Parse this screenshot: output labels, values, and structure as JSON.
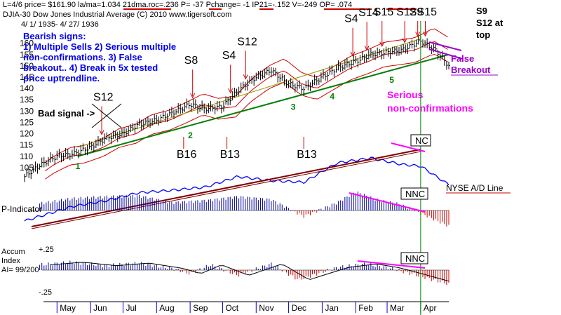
{
  "header": {
    "line1": "L=4/6  price= $161.90  la/ma=1.034  21dma.roc=.236  P= -37  Pchange= -1  IP21=-.152  V=-249  OP= .074",
    "line2": "DJIA-30  Dow Jones Industrial Average     (C) 2010  www.tigersoft.com",
    "line3": "4/ 1/ 1935-  4/ 27/ 1936"
  },
  "top_right_note": [
    "S9",
    "S12 at",
    "top"
  ],
  "bearish_box": {
    "title": "Bearish signs:",
    "lines": [
      "1) Multiple Sells 2) Serious multiple",
      "non-confirmations. 3) False",
      "breakout.. 4) Break in 5x tested",
      "price uptrendline."
    ]
  },
  "panel_labels": {
    "p_indicator": "P-Indicator",
    "accum_index": [
      "Accum",
      "Index",
      "AI= 99/200"
    ],
    "accum_plus": "+.25",
    "accum_minus": "-.25"
  },
  "annotations": {
    "bad_signal": "Bad signal ->",
    "false_breakout": [
      "False",
      "Breakout"
    ],
    "serious": [
      "Serious",
      "non-confirmations"
    ],
    "nyse_ad": "NYSE A/D Line",
    "nc": "NC",
    "nnc1": "NNC",
    "nnc2": "NNC"
  },
  "signals": [
    {
      "label": "S12",
      "date": "1935-06-10",
      "row": "upper"
    },
    {
      "label": "S8",
      "date": "1935-09-02",
      "row": "upper"
    },
    {
      "label": "S4",
      "date": "1935-10-07",
      "row": "upper"
    },
    {
      "label": "S12",
      "date": "1935-10-21",
      "row": "upper"
    },
    {
      "label": "S4",
      "date": "1936-01-28",
      "row": "upper"
    },
    {
      "label": "S14",
      "date": "1936-02-10",
      "row": "upper"
    },
    {
      "label": "S15",
      "date": "1936-02-24",
      "row": "upper"
    },
    {
      "label": "S12",
      "date": "1936-03-16",
      "row": "upper"
    },
    {
      "label": "S9",
      "date": "1936-03-28",
      "row": "upper"
    },
    {
      "label": "S15",
      "date": "1936-04-04",
      "row": "upper"
    },
    {
      "label": "B16",
      "date": "1935-08-26",
      "row": "lower"
    },
    {
      "label": "B13",
      "date": "1935-10-05",
      "row": "lower"
    },
    {
      "label": "B13",
      "date": "1935-12-15",
      "row": "lower"
    }
  ],
  "trendline_touches": [
    "1",
    "2",
    "3",
    "4",
    "5"
  ],
  "colors": {
    "price_bars": "#000000",
    "ma_band": "#cc0000",
    "upper_band": "#999900",
    "uptrendline": "#008000",
    "ad_line": "#0000ff",
    "ad_trendline": "#800000",
    "positive_hist": "#000099",
    "negative_hist": "#cc0000",
    "magenta": "#ff00ff",
    "purple": "#9900cc",
    "header_underline": "#cc0000"
  },
  "chart_data": {
    "type": "bar",
    "title": "Dow Jones Industrial Average",
    "x_range": [
      "1935-04-01",
      "1936-04-27"
    ],
    "x_tick_labels": [
      "May",
      "Jun",
      "Jul",
      "Aug",
      "Sep",
      "Oct",
      "Nov",
      "Dec",
      "Jan",
      "Feb",
      "Mar",
      "Apr"
    ],
    "y_ticks": [
      105,
      110,
      115,
      120,
      125,
      130,
      135,
      140,
      145,
      150,
      155,
      160
    ],
    "ylim": [
      100,
      163
    ],
    "price_series": {
      "name": "DJIA",
      "points": [
        [
          "1935-04-01",
          101
        ],
        [
          "1935-04-15",
          106
        ],
        [
          "1935-05-01",
          110
        ],
        [
          "1935-05-15",
          111
        ],
        [
          "1935-06-01",
          114
        ],
        [
          "1935-06-15",
          118
        ],
        [
          "1935-07-01",
          120
        ],
        [
          "1935-07-15",
          124
        ],
        [
          "1935-08-01",
          126
        ],
        [
          "1935-08-15",
          129
        ],
        [
          "1935-09-01",
          133
        ],
        [
          "1935-09-15",
          131
        ],
        [
          "1935-10-01",
          132
        ],
        [
          "1935-10-15",
          139
        ],
        [
          "1935-11-01",
          145
        ],
        [
          "1935-11-15",
          148
        ],
        [
          "1935-12-01",
          142
        ],
        [
          "1935-12-15",
          140
        ],
        [
          "1936-01-01",
          145
        ],
        [
          "1936-01-15",
          149
        ],
        [
          "1936-02-01",
          152
        ],
        [
          "1936-02-15",
          155
        ],
        [
          "1936-03-01",
          156
        ],
        [
          "1936-03-15",
          157
        ],
        [
          "1936-04-01",
          161
        ],
        [
          "1936-04-15",
          157
        ],
        [
          "1936-04-27",
          150
        ]
      ]
    },
    "uptrendline": {
      "start": [
        "1935-05-20",
        110
      ],
      "end": [
        "1936-04-27",
        155
      ]
    },
    "ad_line": {
      "name": "NYSE A/D Line",
      "points": [
        [
          "1935-04-01",
          0.0
        ],
        [
          "1935-05-15",
          0.18
        ],
        [
          "1935-06-15",
          0.25
        ],
        [
          "1935-07-15",
          0.35
        ],
        [
          "1935-08-15",
          0.38
        ],
        [
          "1935-09-15",
          0.42
        ],
        [
          "1935-10-15",
          0.55
        ],
        [
          "1935-11-15",
          0.5
        ],
        [
          "1935-12-15",
          0.48
        ],
        [
          "1936-01-15",
          0.72
        ],
        [
          "1936-02-15",
          0.78
        ],
        [
          "1936-03-15",
          0.7
        ],
        [
          "1936-04-01",
          0.68
        ],
        [
          "1936-04-27",
          0.45
        ]
      ]
    },
    "p_indicator": {
      "name": "P-Indicator",
      "points": [
        [
          "1935-04-15",
          0.35
        ],
        [
          "1935-05-15",
          0.6
        ],
        [
          "1935-06-15",
          0.7
        ],
        [
          "1935-07-15",
          0.75
        ],
        [
          "1935-08-15",
          0.4
        ],
        [
          "1935-09-15",
          0.5
        ],
        [
          "1935-10-15",
          0.7
        ],
        [
          "1935-11-15",
          0.55
        ],
        [
          "1935-12-15",
          -0.3
        ],
        [
          "1936-01-15",
          0.4
        ],
        [
          "1936-02-01",
          0.95
        ],
        [
          "1936-02-20",
          0.55
        ],
        [
          "1936-03-10",
          0.35
        ],
        [
          "1936-03-25",
          0.05
        ],
        [
          "1936-04-27",
          -0.8
        ]
      ]
    },
    "accum_index": {
      "name": "Accum Index",
      "points": [
        [
          "1935-04-15",
          0.3
        ],
        [
          "1935-05-15",
          0.45
        ],
        [
          "1935-06-15",
          0.25
        ],
        [
          "1935-07-15",
          0.4
        ],
        [
          "1935-08-15",
          0.1
        ],
        [
          "1935-09-01",
          -0.2
        ],
        [
          "1935-09-20",
          0.3
        ],
        [
          "1935-10-15",
          -0.3
        ],
        [
          "1935-11-15",
          0.35
        ],
        [
          "1935-12-10",
          -0.55
        ],
        [
          "1936-01-15",
          0.15
        ],
        [
          "1936-02-10",
          0.35
        ],
        [
          "1936-03-01",
          0.15
        ],
        [
          "1936-03-20",
          -0.15
        ],
        [
          "1936-04-27",
          -0.8
        ]
      ]
    }
  }
}
